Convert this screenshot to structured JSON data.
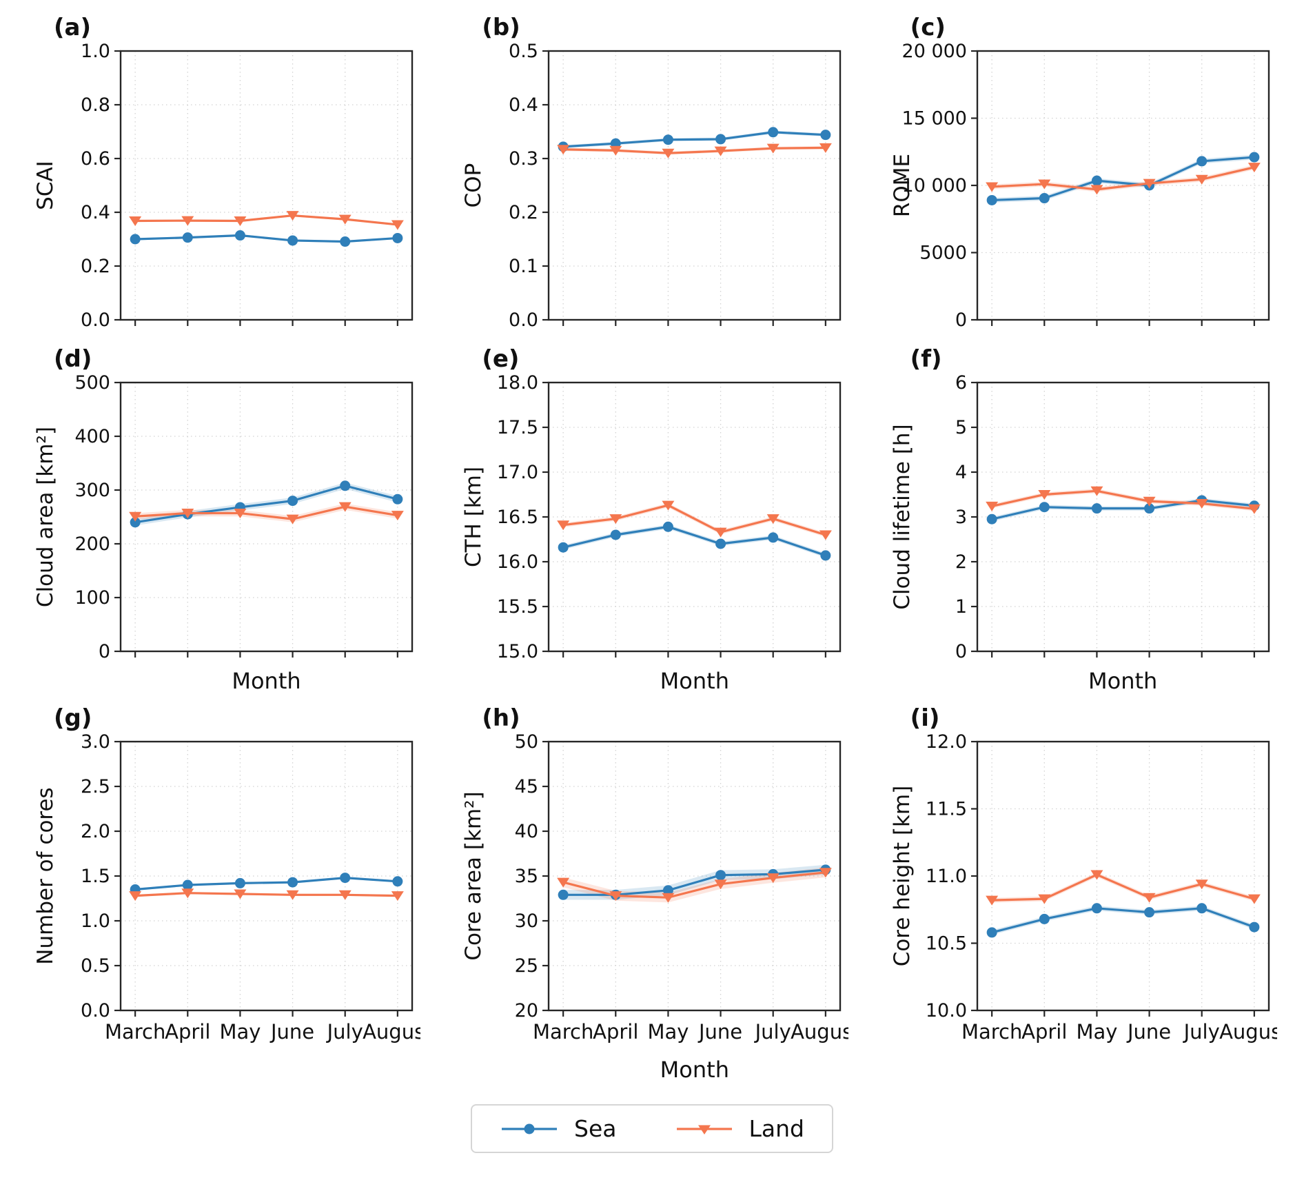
{
  "legend": {
    "sea_label": "Sea",
    "land_label": "Land",
    "sea_color": "#2f7fb9",
    "land_color": "#f4764e"
  },
  "months": [
    "March",
    "April",
    "May",
    "June",
    "July",
    "August"
  ],
  "chart_data": [
    {
      "panel_label": "(a)",
      "type": "line",
      "ylabel": "SCAI",
      "xlabel": "",
      "ylim": [
        0.0,
        1.0
      ],
      "yticks": [
        "0.0",
        "0.2",
        "0.4",
        "0.6",
        "0.8",
        "1.0"
      ],
      "show_xticklabels": false,
      "grid": true,
      "series": [
        {
          "name": "Sea",
          "values": [
            0.3,
            0.306,
            0.314,
            0.295,
            0.291,
            0.304
          ],
          "band": 0.004
        },
        {
          "name": "Land",
          "values": [
            0.368,
            0.369,
            0.368,
            0.388,
            0.374,
            0.354
          ],
          "band": 0.004
        }
      ]
    },
    {
      "panel_label": "(b)",
      "type": "line",
      "ylabel": "COP",
      "xlabel": "",
      "ylim": [
        0.0,
        0.5
      ],
      "yticks": [
        "0.0",
        "0.1",
        "0.2",
        "0.3",
        "0.4",
        "0.5"
      ],
      "show_xticklabels": false,
      "grid": true,
      "series": [
        {
          "name": "Sea",
          "values": [
            0.322,
            0.328,
            0.335,
            0.336,
            0.349,
            0.344
          ],
          "band": 0.003
        },
        {
          "name": "Land",
          "values": [
            0.317,
            0.315,
            0.31,
            0.314,
            0.319,
            0.32
          ],
          "band": 0.003
        }
      ]
    },
    {
      "panel_label": "(c)",
      "type": "line",
      "ylabel": "ROME",
      "xlabel": "",
      "ylim": [
        0,
        20000
      ],
      "yticks": [
        "0",
        "5000",
        "10 000",
        "15 000",
        "20 000"
      ],
      "show_xticklabels": false,
      "grid": true,
      "series": [
        {
          "name": "Sea",
          "values": [
            8900,
            9050,
            10350,
            10000,
            11800,
            12100
          ],
          "band": 180
        },
        {
          "name": "Land",
          "values": [
            9900,
            10100,
            9700,
            10150,
            10450,
            11350
          ],
          "band": 180
        }
      ]
    },
    {
      "panel_label": "(d)",
      "type": "line",
      "ylabel": "Cloud area [km²]",
      "xlabel": "Month",
      "ylim": [
        0,
        500
      ],
      "yticks": [
        "0",
        "100",
        "200",
        "300",
        "400",
        "500"
      ],
      "show_xticklabels": false,
      "grid": true,
      "series": [
        {
          "name": "Sea",
          "values": [
            240,
            255,
            268,
            280,
            308,
            283
          ],
          "band": 6
        },
        {
          "name": "Land",
          "values": [
            251,
            257,
            257,
            246,
            269,
            253
          ],
          "band": 6
        }
      ]
    },
    {
      "panel_label": "(e)",
      "type": "line",
      "ylabel": "CTH [km]",
      "xlabel": "Month",
      "ylim": [
        15.0,
        18.0
      ],
      "yticks": [
        "15.0",
        "15.5",
        "16.0",
        "16.5",
        "17.0",
        "17.5",
        "18.0"
      ],
      "show_xticklabels": false,
      "grid": true,
      "series": [
        {
          "name": "Sea",
          "values": [
            16.16,
            16.3,
            16.39,
            16.2,
            16.27,
            16.07
          ],
          "band": 0.025
        },
        {
          "name": "Land",
          "values": [
            16.41,
            16.48,
            16.63,
            16.33,
            16.48,
            16.3
          ],
          "band": 0.025
        }
      ]
    },
    {
      "panel_label": "(f)",
      "type": "line",
      "ylabel": "Cloud lifetime [h]",
      "xlabel": "Month",
      "ylim": [
        0,
        6
      ],
      "yticks": [
        "0",
        "1",
        "2",
        "3",
        "4",
        "5",
        "6"
      ],
      "show_xticklabels": false,
      "grid": true,
      "series": [
        {
          "name": "Sea",
          "values": [
            2.95,
            3.22,
            3.19,
            3.19,
            3.37,
            3.25
          ],
          "band": 0.05
        },
        {
          "name": "Land",
          "values": [
            3.24,
            3.5,
            3.58,
            3.35,
            3.3,
            3.18
          ],
          "band": 0.05
        }
      ]
    },
    {
      "panel_label": "(g)",
      "type": "line",
      "ylabel": "Number of cores",
      "xlabel": "",
      "ylim": [
        0.0,
        3.0
      ],
      "yticks": [
        "0.0",
        "0.5",
        "1.0",
        "1.5",
        "2.0",
        "2.5",
        "3.0"
      ],
      "show_xticklabels": true,
      "grid": true,
      "series": [
        {
          "name": "Sea",
          "values": [
            1.35,
            1.4,
            1.42,
            1.43,
            1.48,
            1.44
          ],
          "band": 0.012
        },
        {
          "name": "Land",
          "values": [
            1.28,
            1.31,
            1.3,
            1.29,
            1.29,
            1.28
          ],
          "band": 0.012
        }
      ]
    },
    {
      "panel_label": "(h)",
      "type": "line",
      "ylabel": "Core area [km²]",
      "xlabel": "Month",
      "ylim": [
        20,
        50
      ],
      "yticks": [
        "20",
        "25",
        "30",
        "35",
        "40",
        "45",
        "50"
      ],
      "show_xticklabels": true,
      "grid": true,
      "series": [
        {
          "name": "Sea",
          "values": [
            32.9,
            32.9,
            33.4,
            35.1,
            35.2,
            35.7
          ],
          "band": 0.55
        },
        {
          "name": "Land",
          "values": [
            34.3,
            32.8,
            32.6,
            34.1,
            34.8,
            35.4
          ],
          "band": 0.55
        }
      ]
    },
    {
      "panel_label": "(i)",
      "type": "line",
      "ylabel": "Core height [km]",
      "xlabel": "",
      "ylim": [
        10.0,
        12.0
      ],
      "yticks": [
        "10.0",
        "10.5",
        "11.0",
        "11.5",
        "12.0"
      ],
      "show_xticklabels": true,
      "grid": true,
      "series": [
        {
          "name": "Sea",
          "values": [
            10.58,
            10.68,
            10.76,
            10.73,
            10.76,
            10.62
          ],
          "band": 0.018
        },
        {
          "name": "Land",
          "values": [
            10.82,
            10.83,
            11.01,
            10.84,
            10.94,
            10.83
          ],
          "band": 0.018
        }
      ]
    }
  ]
}
